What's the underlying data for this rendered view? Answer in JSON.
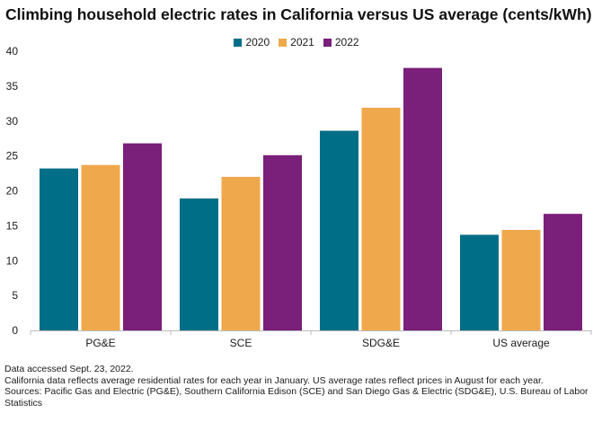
{
  "title": "Climbing household electric rates in California versus US average (cents/kWh)",
  "chart_data": {
    "type": "bar",
    "title": "Climbing household electric rates in California versus US average (cents/kWh)",
    "categories": [
      "PG&E",
      "SCE",
      "SDG&E",
      "US average"
    ],
    "series": [
      {
        "name": "2020",
        "color": "#006e87",
        "values": [
          23.2,
          18.9,
          28.6,
          13.7
        ]
      },
      {
        "name": "2021",
        "color": "#f0a84c",
        "values": [
          23.7,
          22.0,
          31.9,
          14.4
        ]
      },
      {
        "name": "2022",
        "color": "#7a1f7a",
        "values": [
          26.8,
          25.1,
          37.6,
          16.7
        ]
      }
    ],
    "ylim": [
      0,
      40
    ],
    "yticks": [
      0,
      5,
      10,
      15,
      20,
      25,
      30,
      35,
      40
    ],
    "xlabel": "",
    "ylabel": "",
    "grid": false,
    "legend_position": "top-center"
  },
  "notes": [
    "Data accessed Sept. 23, 2022.",
    "California data reflects average residential rates for each year in January. US average rates reflect prices in August for each year.",
    "Sources: Pacific Gas and Electric (PG&E), Southern California Edison (SCE) and San Diego Gas & Electric (SDG&E), U.S. Bureau of Labor Statistics"
  ]
}
